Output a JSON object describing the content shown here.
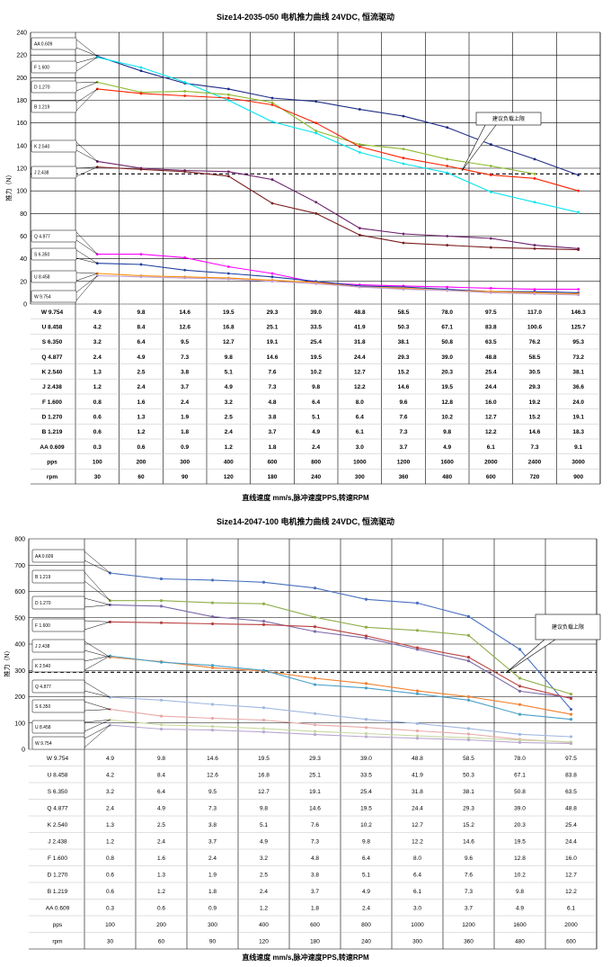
{
  "chart_data": [
    {
      "type": "line",
      "title": "Size14-2035-050 电机推力曲线 24VDC, 恒流驱动",
      "xlabel": "直线速度 mm/s,脉冲速度PPS,转速RPM",
      "ylabel": "推力（N）",
      "ylim": [
        0,
        240
      ],
      "yticks": [
        0,
        20,
        40,
        60,
        80,
        100,
        120,
        140,
        160,
        180,
        200,
        220,
        240
      ],
      "grid": true,
      "reference": {
        "value": 115,
        "label": "建议负载上限"
      },
      "series": [
        {
          "name": "AA 0.609",
          "color": "#1f2d86",
          "values": [
            219,
            206,
            195,
            190,
            182,
            179,
            172,
            166,
            156,
            141,
            128,
            114
          ]
        },
        {
          "name": "F 1.600",
          "color": "#00e5ee",
          "values": [
            218,
            209,
            196,
            180,
            161,
            151,
            134,
            124,
            116,
            99,
            90,
            81
          ]
        },
        {
          "name": "D 1.270",
          "color": "#8dba2f",
          "values": [
            196,
            187,
            188,
            185,
            178,
            153,
            141,
            137,
            128,
            122,
            115,
            null
          ]
        },
        {
          "name": "B 1.219",
          "color": "#ff2200",
          "values": [
            190,
            186,
            184,
            182,
            176,
            160,
            139,
            129,
            122,
            114,
            111,
            100
          ]
        },
        {
          "name": "K 2.540",
          "color": "#6a1f6a",
          "values": [
            126,
            120,
            118,
            117,
            110,
            90,
            67,
            62,
            60,
            58,
            52,
            49
          ]
        },
        {
          "name": "J 2.438",
          "color": "#7a1f1f",
          "values": [
            121,
            119,
            117,
            113,
            89,
            80,
            61,
            54,
            52,
            50,
            49,
            48
          ]
        },
        {
          "name": "Q 4.877",
          "color": "#ff00ff",
          "values": [
            44,
            44,
            41,
            33,
            27,
            19,
            17,
            16,
            15,
            14,
            13,
            13
          ]
        },
        {
          "name": "S 6.350",
          "color": "#1f3f9f",
          "values": [
            36,
            35,
            30,
            27,
            24,
            20,
            16,
            15,
            13,
            11,
            11,
            10
          ]
        },
        {
          "name": "U 8.458",
          "color": "#ff8a00",
          "values": [
            27,
            25,
            24,
            23,
            21,
            19,
            15,
            14,
            12,
            11,
            10,
            9
          ]
        },
        {
          "name": "W 9.754",
          "color": "#bfa0d0",
          "values": [
            25,
            24,
            23,
            22,
            20,
            18,
            15,
            13,
            12,
            10,
            9,
            8
          ]
        }
      ],
      "table_rows": [
        {
          "label": "W 9.754",
          "values": [
            "4.9",
            "9.8",
            "14.6",
            "19.5",
            "29.3",
            "39.0",
            "48.8",
            "58.5",
            "78.0",
            "97.5",
            "117.0",
            "146.3"
          ]
        },
        {
          "label": "U 8.458",
          "values": [
            "4.2",
            "8.4",
            "12.6",
            "16.8",
            "25.1",
            "33.5",
            "41.9",
            "50.3",
            "67.1",
            "83.8",
            "100.6",
            "125.7"
          ]
        },
        {
          "label": "S 6.350",
          "values": [
            "3.2",
            "6.4",
            "9.5",
            "12.7",
            "19.1",
            "25.4",
            "31.8",
            "38.1",
            "50.8",
            "63.5",
            "76.2",
            "95.3"
          ]
        },
        {
          "label": "Q 4.877",
          "values": [
            "2.4",
            "4.9",
            "7.3",
            "9.8",
            "14.6",
            "19.5",
            "24.4",
            "29.3",
            "39.0",
            "48.8",
            "58.5",
            "73.2"
          ]
        },
        {
          "label": "K 2.540",
          "values": [
            "1.3",
            "2.5",
            "3.8",
            "5.1",
            "7.6",
            "10.2",
            "12.7",
            "15.2",
            "20.3",
            "25.4",
            "30.5",
            "38.1"
          ]
        },
        {
          "label": "J 2.438",
          "values": [
            "1.2",
            "2.4",
            "3.7",
            "4.9",
            "7.3",
            "9.8",
            "12.2",
            "14.6",
            "19.5",
            "24.4",
            "29.3",
            "36.6"
          ]
        },
        {
          "label": "F 1.600",
          "values": [
            "0.8",
            "1.6",
            "2.4",
            "3.2",
            "4.8",
            "6.4",
            "8.0",
            "9.6",
            "12.8",
            "16.0",
            "19.2",
            "24.0"
          ]
        },
        {
          "label": "D 1.270",
          "values": [
            "0.6",
            "1.3",
            "1.9",
            "2.5",
            "3.8",
            "5.1",
            "6.4",
            "7.6",
            "10.2",
            "12.7",
            "15.2",
            "19.1"
          ]
        },
        {
          "label": "B 1.219",
          "values": [
            "0.6",
            "1.2",
            "1.8",
            "2.4",
            "3.7",
            "4.9",
            "6.1",
            "7.3",
            "9.8",
            "12.2",
            "14.6",
            "18.3"
          ]
        },
        {
          "label": "AA 0.609",
          "values": [
            "0.3",
            "0.6",
            "0.9",
            "1.2",
            "1.8",
            "2.4",
            "3.0",
            "3.7",
            "4.9",
            "6.1",
            "7.3",
            "9.1"
          ]
        },
        {
          "label": "pps",
          "values": [
            "100",
            "200",
            "300",
            "400",
            "600",
            "800",
            "1000",
            "1200",
            "1600",
            "2000",
            "2400",
            "3000"
          ]
        },
        {
          "label": "rpm",
          "values": [
            "30",
            "60",
            "90",
            "120",
            "180",
            "240",
            "300",
            "360",
            "480",
            "600",
            "720",
            "900"
          ]
        }
      ]
    },
    {
      "type": "line",
      "title": "Size14-2047-100 电机推力曲线 24VDC, 恒流驱动",
      "xlabel": "直线速度 mm/s,脉冲速度PPS,转速RPM",
      "ylabel": "推力（N）",
      "ylim": [
        0,
        800
      ],
      "yticks": [
        0,
        100,
        200,
        300,
        400,
        500,
        600,
        700,
        800
      ],
      "grid": true,
      "reference": {
        "value": 293,
        "label": "建议负载上限"
      },
      "series": [
        {
          "name": "AA 0.609",
          "color": "#4a6fc0",
          "values": [
            670,
            648,
            643,
            635,
            613,
            570,
            556,
            505,
            380,
            152
          ]
        },
        {
          "name": "B 1.219",
          "color": "#8fae4a",
          "values": [
            565,
            565,
            557,
            553,
            502,
            464,
            452,
            433,
            270,
            210
          ]
        },
        {
          "name": "D 1.270",
          "color": "#7c6aa8",
          "values": [
            549,
            544,
            504,
            487,
            448,
            423,
            380,
            336,
            221,
            196
          ]
        },
        {
          "name": "F 1.600",
          "color": "#b84040",
          "values": [
            484,
            481,
            477,
            474,
            466,
            431,
            386,
            350,
            240,
            193
          ]
        },
        {
          "name": "J 2.438",
          "color": "#f08030",
          "values": [
            350,
            333,
            310,
            297,
            270,
            250,
            222,
            200,
            170,
            133
          ]
        },
        {
          "name": "K 2.540",
          "color": "#4aa0c8",
          "values": [
            355,
            331,
            319,
            300,
            246,
            233,
            211,
            187,
            133,
            114
          ]
        },
        {
          "name": "Q 4.877",
          "color": "#a0b8e0",
          "values": [
            198,
            187,
            171,
            158,
            136,
            114,
            98,
            79,
            57,
            48
          ]
        },
        {
          "name": "S 6.350",
          "color": "#e8a8a8",
          "values": [
            152,
            126,
            118,
            111,
            93,
            83,
            70,
            58,
            38,
            26
          ]
        },
        {
          "name": "U 8.458",
          "color": "#c8d8a0",
          "values": [
            112,
            93,
            87,
            79,
            68,
            60,
            51,
            44,
            35,
            28
          ]
        },
        {
          "name": "W 9.754",
          "color": "#b8a8d0",
          "values": [
            92,
            77,
            73,
            66,
            56,
            48,
            42,
            36,
            26,
            22
          ]
        }
      ],
      "table_rows": [
        {
          "label": "W 9.754",
          "values": [
            "4.9",
            "9.8",
            "14.6",
            "19.5",
            "29.3",
            "39.0",
            "48.8",
            "58.5",
            "78.0",
            "97.5"
          ]
        },
        {
          "label": "U 8.458",
          "values": [
            "4.2",
            "8.4",
            "12.6",
            "16.8",
            "25.1",
            "33.5",
            "41.9",
            "50.3",
            "67.1",
            "83.8"
          ]
        },
        {
          "label": "S 6.350",
          "values": [
            "3.2",
            "6.4",
            "9.5",
            "12.7",
            "19.1",
            "25.4",
            "31.8",
            "38.1",
            "50.8",
            "63.5"
          ]
        },
        {
          "label": "Q 4.877",
          "values": [
            "2.4",
            "4.9",
            "7.3",
            "9.8",
            "14.6",
            "19.5",
            "24.4",
            "29.3",
            "39.0",
            "48.8"
          ]
        },
        {
          "label": "K 2.540",
          "values": [
            "1.3",
            "2.5",
            "3.8",
            "5.1",
            "7.6",
            "10.2",
            "12.7",
            "15.2",
            "20.3",
            "25.4"
          ]
        },
        {
          "label": "J 2.438",
          "values": [
            "1.2",
            "2.4",
            "3.7",
            "4.9",
            "7.3",
            "9.8",
            "12.2",
            "14.6",
            "19.5",
            "24.4"
          ]
        },
        {
          "label": "F 1.600",
          "values": [
            "0.8",
            "1.6",
            "2.4",
            "3.2",
            "4.8",
            "6.4",
            "8.0",
            "9.6",
            "12.8",
            "16.0"
          ]
        },
        {
          "label": "D 1.270",
          "values": [
            "0.6",
            "1.3",
            "1.9",
            "2.5",
            "3.8",
            "5.1",
            "6.4",
            "7.6",
            "10.2",
            "12.7"
          ]
        },
        {
          "label": "B 1.219",
          "values": [
            "0.6",
            "1.2",
            "1.8",
            "2.4",
            "3.7",
            "4.9",
            "6.1",
            "7.3",
            "9.8",
            "12.2"
          ]
        },
        {
          "label": "AA 0.609",
          "values": [
            "0.3",
            "0.6",
            "0.9",
            "1.2",
            "1.8",
            "2.4",
            "3.0",
            "3.7",
            "4.9",
            "6.1"
          ]
        },
        {
          "label": "pps",
          "values": [
            "100",
            "200",
            "300",
            "400",
            "600",
            "800",
            "1000",
            "1200",
            "1600",
            "2000"
          ]
        },
        {
          "label": "rpm",
          "values": [
            "30",
            "60",
            "90",
            "120",
            "180",
            "240",
            "300",
            "360",
            "480",
            "600"
          ]
        }
      ]
    }
  ]
}
